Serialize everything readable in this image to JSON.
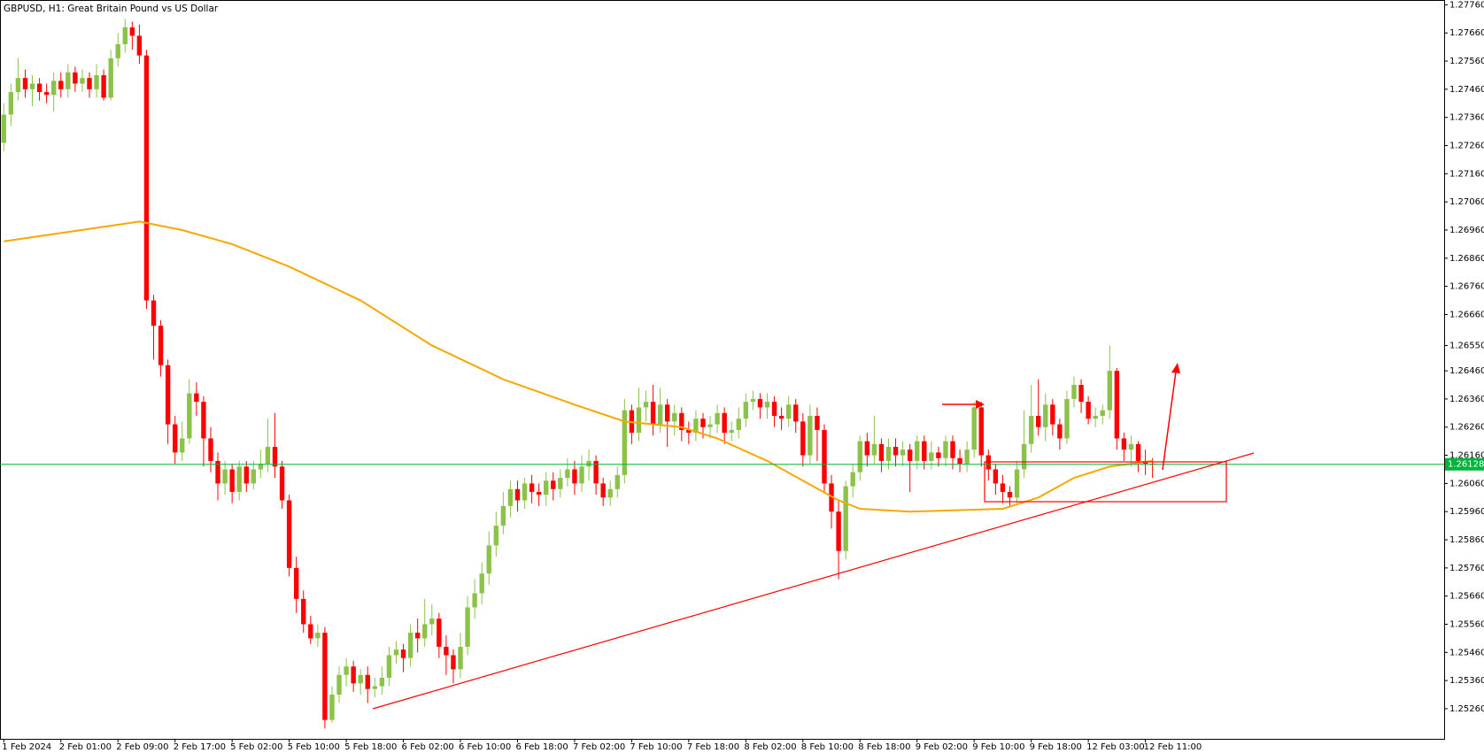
{
  "chart_data": {
    "type": "candlestick",
    "title": "GBPUSD, H1:  Great Britain Pound vs US Dollar",
    "categories": [
      "1 Feb 2024",
      null,
      null,
      null,
      null,
      null,
      null,
      null,
      "2 Feb 01:00",
      null,
      null,
      null,
      null,
      null,
      null,
      null,
      "2 Feb 09:00",
      null,
      null,
      null,
      null,
      null,
      null,
      null,
      "2 Feb 17:00",
      null,
      null,
      null,
      null,
      null,
      null,
      null,
      "5 Feb 02:00",
      null,
      null,
      null,
      null,
      null,
      null,
      null,
      "5 Feb 10:00",
      null,
      null,
      null,
      null,
      null,
      null,
      null,
      "5 Feb 18:00",
      null,
      null,
      null,
      null,
      null,
      null,
      null,
      "6 Feb 02:00",
      null,
      null,
      null,
      null,
      null,
      null,
      null,
      "6 Feb 10:00",
      null,
      null,
      null,
      null,
      null,
      null,
      null,
      "6 Feb 18:00",
      null,
      null,
      null,
      null,
      null,
      null,
      null,
      "7 Feb 02:00",
      null,
      null,
      null,
      null,
      null,
      null,
      null,
      "7 Feb 10:00",
      null,
      null,
      null,
      null,
      null,
      null,
      null,
      "7 Feb 18:00",
      null,
      null,
      null,
      null,
      null,
      null,
      null,
      "8 Feb 02:00",
      null,
      null,
      null,
      null,
      null,
      null,
      null,
      "8 Feb 10:00",
      null,
      null,
      null,
      null,
      null,
      null,
      null,
      "8 Feb 18:00",
      null,
      null,
      null,
      null,
      null,
      null,
      null,
      "9 Feb 02:00",
      null,
      null,
      null,
      null,
      null,
      null,
      null,
      "9 Feb 10:00",
      null,
      null,
      null,
      null,
      null,
      null,
      null,
      "9 Feb 18:00",
      null,
      null,
      null,
      null,
      null,
      null,
      null,
      "12 Feb 03:00",
      null,
      null,
      null,
      null,
      null,
      null,
      null,
      "12 Feb 11:00",
      null
    ],
    "open": [
      1.2727,
      1.2737,
      1.2745,
      1.275,
      1.2746,
      1.2748,
      1.2745,
      1.2744,
      1.2749,
      1.2746,
      1.2752,
      1.2748,
      1.275,
      1.2746,
      1.2751,
      1.2743,
      1.2757,
      1.2762,
      1.2768,
      1.2765,
      1.2758,
      1.2671,
      1.2662,
      1.2648,
      1.2627,
      1.2617,
      1.2622,
      1.2638,
      1.2635,
      1.2622,
      1.2614,
      1.2606,
      1.2611,
      1.2603,
      1.2612,
      1.2606,
      1.2611,
      1.2613,
      1.2619,
      1.2612,
      1.26,
      1.2576,
      1.2565,
      1.2556,
      1.2551,
      1.2553,
      1.2522,
      1.2531,
      1.2538,
      1.2541,
      1.2535,
      1.2538,
      1.2533,
      1.2534,
      1.2537,
      1.2545,
      1.2547,
      1.2544,
      1.2553,
      1.2551,
      1.2556,
      1.2558,
      1.2548,
      1.2545,
      1.254,
      1.2548,
      1.2562,
      1.2567,
      1.2574,
      1.2584,
      1.2591,
      1.2598,
      1.2604,
      1.26,
      1.2606,
      1.2603,
      1.2602,
      1.2607,
      1.2604,
      1.2608,
      1.2611,
      1.2606,
      1.2612,
      1.2614,
      1.2606,
      1.2601,
      1.2604,
      1.2609,
      1.2632,
      1.2624,
      1.2633,
      1.2635,
      1.2627,
      1.2634,
      1.2628,
      1.2631,
      1.2625,
      1.2624,
      1.2629,
      1.2626,
      1.2627,
      1.2631,
      1.2624,
      1.2625,
      1.2629,
      1.2635,
      1.2636,
      1.2633,
      1.2635,
      1.263,
      1.2629,
      1.2634,
      1.2628,
      1.2616,
      1.263,
      1.2625,
      1.2606,
      1.2596,
      1.2582,
      1.2605,
      1.261,
      1.2621,
      1.2616,
      1.262,
      1.2614,
      1.2619,
      1.2616,
      1.2618,
      1.2614,
      1.2621,
      1.2614,
      1.2617,
      1.2615,
      1.2621,
      1.2615,
      1.2613,
      1.2618,
      1.2633,
      1.2616,
      1.2611,
      1.2606,
      1.2603,
      1.2601,
      1.2611,
      1.262,
      1.263,
      1.2626,
      1.2634,
      1.2627,
      1.2622,
      1.2636,
      1.2641,
      1.2635,
      1.2629,
      1.263,
      1.2632,
      1.2646,
      1.2622,
      1.2618,
      1.262,
      1.2614,
      1.2613
    ],
    "high": [
      1.2741,
      1.2748,
      1.2757,
      1.2753,
      1.2751,
      1.275,
      1.2748,
      1.2752,
      1.2752,
      1.2755,
      1.2754,
      1.2753,
      1.2752,
      1.2755,
      1.2753,
      1.276,
      1.2766,
      1.2771,
      1.277,
      1.2769,
      1.276,
      1.2673,
      1.2664,
      1.265,
      1.263,
      1.2628,
      1.2643,
      1.2642,
      1.2637,
      1.2626,
      1.2617,
      1.2614,
      1.2613,
      1.2614,
      1.2614,
      1.2614,
      1.2618,
      1.2629,
      1.2631,
      1.2614,
      1.2602,
      1.258,
      1.2568,
      1.2559,
      1.2556,
      1.2555,
      1.2534,
      1.2541,
      1.2544,
      1.2543,
      1.254,
      1.2541,
      1.2537,
      1.2541,
      1.2548,
      1.255,
      1.2549,
      1.2556,
      1.2558,
      1.2565,
      1.2563,
      1.256,
      1.2552,
      1.2547,
      1.2553,
      1.2566,
      1.2572,
      1.2578,
      1.2589,
      1.2596,
      1.2603,
      1.2607,
      1.2607,
      1.2608,
      1.2609,
      1.2606,
      1.261,
      1.261,
      1.2611,
      1.2615,
      1.2614,
      1.2616,
      1.2618,
      1.2616,
      1.2608,
      1.2607,
      1.2612,
      1.2636,
      1.2634,
      1.264,
      1.2639,
      1.2641,
      1.264,
      1.2636,
      1.2634,
      1.2633,
      1.2628,
      1.2632,
      1.2631,
      1.263,
      1.2634,
      1.2633,
      1.2628,
      1.2633,
      1.2638,
      1.2639,
      1.2638,
      1.2638,
      1.2637,
      1.2633,
      1.2637,
      1.2636,
      1.2631,
      1.2634,
      1.2633,
      1.2627,
      1.2609,
      1.26,
      1.2607,
      1.2613,
      1.2623,
      1.2624,
      1.263,
      1.2622,
      1.2622,
      1.2622,
      1.2621,
      1.262,
      1.2623,
      1.2623,
      1.2621,
      1.2619,
      1.2623,
      1.2623,
      1.2618,
      1.2621,
      1.2635,
      1.2635,
      1.2618,
      1.2613,
      1.2609,
      1.2605,
      1.2614,
      1.2632,
      1.2641,
      1.2643,
      1.2638,
      1.2636,
      1.2629,
      1.2639,
      1.2644,
      1.2643,
      1.2637,
      1.2633,
      1.2634,
      1.2655,
      1.2647,
      1.2624,
      1.2623,
      1.2621,
      1.2618,
      1.2615
    ],
    "low": [
      1.2724,
      1.2733,
      1.2742,
      1.2743,
      1.274,
      1.2742,
      1.2741,
      1.2738,
      1.2743,
      1.2743,
      1.2745,
      1.2745,
      1.2743,
      1.2743,
      1.2742,
      1.2742,
      1.2754,
      1.2759,
      1.276,
      1.2755,
      1.2668,
      1.265,
      1.2644,
      1.262,
      1.2613,
      1.2614,
      1.262,
      1.263,
      1.2612,
      1.261,
      1.26,
      1.2602,
      1.2599,
      1.26,
      1.2603,
      1.2604,
      1.2608,
      1.261,
      1.2608,
      1.2597,
      1.2573,
      1.256,
      1.2553,
      1.2549,
      1.2548,
      1.2519,
      1.2521,
      1.2528,
      1.2534,
      1.2532,
      1.2531,
      1.2528,
      1.253,
      1.2531,
      1.2534,
      1.2542,
      1.2539,
      1.2541,
      1.2546,
      1.2548,
      1.2552,
      1.2544,
      1.2538,
      1.2535,
      1.2537,
      1.2545,
      1.2558,
      1.2563,
      1.257,
      1.258,
      1.2588,
      1.2594,
      1.2596,
      1.2597,
      1.2599,
      1.2598,
      1.2598,
      1.26,
      1.2601,
      1.2605,
      1.2602,
      1.2603,
      1.2607,
      1.2602,
      1.2598,
      1.2598,
      1.2601,
      1.2606,
      1.262,
      1.2621,
      1.2628,
      1.2623,
      1.2624,
      1.2619,
      1.2623,
      1.2621,
      1.262,
      1.2621,
      1.2622,
      1.2622,
      1.2624,
      1.262,
      1.2621,
      1.2622,
      1.2626,
      1.2632,
      1.2629,
      1.2629,
      1.2626,
      1.2625,
      1.2626,
      1.2624,
      1.2612,
      1.2613,
      1.2614,
      1.2603,
      1.259,
      1.2572,
      1.2579,
      1.2601,
      1.2607,
      1.2612,
      1.2613,
      1.261,
      1.2611,
      1.2612,
      1.2612,
      1.2603,
      1.2611,
      1.2611,
      1.2611,
      1.2612,
      1.2612,
      1.2611,
      1.261,
      1.261,
      1.2615,
      1.2612,
      1.2607,
      1.2602,
      1.2599,
      1.2598,
      1.2599,
      1.2608,
      1.2617,
      1.2623,
      1.2621,
      1.2623,
      1.2618,
      1.262,
      1.2633,
      1.2631,
      1.2627,
      1.2626,
      1.2627,
      1.2629,
      1.2618,
      1.2614,
      1.2612,
      1.261,
      1.2609,
      1.2608
    ],
    "close": [
      1.2737,
      1.2745,
      1.275,
      1.2746,
      1.2748,
      1.2745,
      1.2744,
      1.2749,
      1.2746,
      1.2752,
      1.2748,
      1.275,
      1.2746,
      1.2751,
      1.2743,
      1.2757,
      1.2762,
      1.2768,
      1.2765,
      1.2758,
      1.2671,
      1.2662,
      1.2648,
      1.2627,
      1.2617,
      1.2622,
      1.2638,
      1.2635,
      1.2622,
      1.2614,
      1.2606,
      1.2611,
      1.2603,
      1.2612,
      1.2606,
      1.2611,
      1.2613,
      1.2619,
      1.2612,
      1.26,
      1.2576,
      1.2565,
      1.2556,
      1.2551,
      1.2553,
      1.2522,
      1.2531,
      1.2538,
      1.2541,
      1.2535,
      1.2538,
      1.2533,
      1.2534,
      1.2537,
      1.2545,
      1.2547,
      1.2544,
      1.2553,
      1.2551,
      1.2556,
      1.2558,
      1.2548,
      1.2545,
      1.254,
      1.2548,
      1.2562,
      1.2567,
      1.2574,
      1.2584,
      1.2591,
      1.2598,
      1.2604,
      1.26,
      1.2606,
      1.2603,
      1.2602,
      1.2607,
      1.2604,
      1.2608,
      1.2611,
      1.2606,
      1.2612,
      1.2614,
      1.2606,
      1.2601,
      1.2604,
      1.2609,
      1.2632,
      1.2624,
      1.2633,
      1.2635,
      1.2627,
      1.2634,
      1.2628,
      1.2631,
      1.2625,
      1.2624,
      1.2629,
      1.2626,
      1.2627,
      1.2631,
      1.2624,
      1.2625,
      1.2629,
      1.2635,
      1.2636,
      1.2633,
      1.2635,
      1.263,
      1.2629,
      1.2634,
      1.2628,
      1.2616,
      1.263,
      1.2625,
      1.2606,
      1.2596,
      1.2582,
      1.2605,
      1.261,
      1.2621,
      1.2616,
      1.262,
      1.2614,
      1.2619,
      1.2616,
      1.2618,
      1.2614,
      1.2621,
      1.2614,
      1.2617,
      1.2615,
      1.2621,
      1.2615,
      1.2613,
      1.2618,
      1.2633,
      1.2616,
      1.2611,
      1.2606,
      1.2603,
      1.2601,
      1.2611,
      1.262,
      1.263,
      1.2626,
      1.2634,
      1.2627,
      1.2622,
      1.2636,
      1.2641,
      1.2635,
      1.2629,
      1.263,
      1.2632,
      1.2646,
      1.2622,
      1.2618,
      1.262,
      1.2614,
      1.2613,
      1.26128
    ],
    "up_color": "#8bc34a",
    "down_color": "#ff0000",
    "ma": {
      "color": "#f5a800",
      "x": [
        0,
        19,
        25,
        32,
        40,
        50,
        60,
        70,
        80,
        87,
        95,
        100,
        107,
        112,
        117,
        120,
        127,
        140,
        145,
        150,
        155,
        161
      ],
      "values": [
        1.2692,
        1.2699,
        1.2696,
        1.2691,
        1.2683,
        1.2671,
        1.2655,
        1.2643,
        1.2634,
        1.2628,
        1.2626,
        1.2622,
        1.2614,
        1.2607,
        1.26,
        1.2597,
        1.2596,
        1.2597,
        1.2601,
        1.2608,
        1.2612,
        1.2614
      ]
    },
    "current_price": 1.26128,
    "current_price_color": "#00b33c",
    "ylim": [
      1.25153,
      1.27777
    ],
    "yticks": [
      {
        "value": 1.2776,
        "label": "1.27760"
      },
      {
        "value": 1.2766,
        "label": "1.27660"
      },
      {
        "value": 1.2756,
        "label": "1.27560"
      },
      {
        "value": 1.2746,
        "label": "1.27460"
      },
      {
        "value": 1.2736,
        "label": "1.27360"
      },
      {
        "value": 1.2726,
        "label": "1.27260"
      },
      {
        "value": 1.2716,
        "label": "1.27160"
      },
      {
        "value": 1.2706,
        "label": "1.27060"
      },
      {
        "value": 1.2696,
        "label": "1.26960"
      },
      {
        "value": 1.2686,
        "label": "1.26860"
      },
      {
        "value": 1.2676,
        "label": "1.26760"
      },
      {
        "value": 1.2666,
        "label": "1.26660"
      },
      {
        "value": 1.2655,
        "label": "1.26550"
      },
      {
        "value": 1.2646,
        "label": "1.26460"
      },
      {
        "value": 1.2636,
        "label": "1.26360"
      },
      {
        "value": 1.2626,
        "label": "1.26260"
      },
      {
        "value": 1.2616,
        "label": "1.26160"
      },
      {
        "value": 1.2606,
        "label": "1.26060"
      },
      {
        "value": 1.2596,
        "label": "1.25960"
      },
      {
        "value": 1.2586,
        "label": "1.25860"
      },
      {
        "value": 1.2576,
        "label": "1.25760"
      },
      {
        "value": 1.2566,
        "label": "1.25660"
      },
      {
        "value": 1.2556,
        "label": "1.25560"
      },
      {
        "value": 1.2546,
        "label": "1.25460"
      },
      {
        "value": 1.2536,
        "label": "1.25360"
      },
      {
        "value": 1.2526,
        "label": "1.25260"
      }
    ],
    "grid": false
  }
}
